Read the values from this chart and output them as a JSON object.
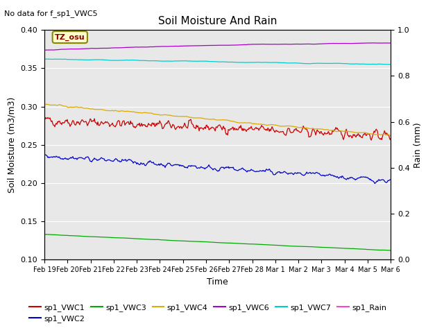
{
  "title": "Soil Moisture And Rain",
  "top_left_text": "No data for f_sp1_VWC5",
  "annotation_text": "TZ_osu",
  "xlabel": "Time",
  "ylabel_left": "Soil Moisture (m3/m3)",
  "ylabel_right": "Rain (mm)",
  "ylim_left": [
    0.1,
    0.4
  ],
  "ylim_right": [
    0.0,
    1.0
  ],
  "background_color": "#e8e8e8",
  "fig_background": "#ffffff",
  "series": {
    "sp1_VWC1": {
      "color": "#cc0000",
      "label": "sp1_VWC1"
    },
    "sp1_VWC2": {
      "color": "#0000cc",
      "label": "sp1_VWC2"
    },
    "sp1_VWC3": {
      "color": "#00aa00",
      "label": "sp1_VWC3"
    },
    "sp1_VWC4": {
      "color": "#ddaa00",
      "label": "sp1_VWC4"
    },
    "sp1_VWC6": {
      "color": "#aa00cc",
      "label": "sp1_VWC6"
    },
    "sp1_VWC7": {
      "color": "#00cccc",
      "label": "sp1_VWC7"
    },
    "sp1_Rain": {
      "color": "#ff44cc",
      "label": "sp1_Rain"
    }
  },
  "tick_labels": [
    "Feb 19",
    "Feb 20",
    "Feb 21",
    "Feb 22",
    "Feb 23",
    "Feb 24",
    "Feb 25",
    "Feb 26",
    "Feb 27",
    "Feb 28",
    "Mar 1",
    "Mar 2",
    "Mar 3",
    "Mar 4",
    "Mar 5",
    "Mar 6"
  ],
  "yticks_left": [
    0.1,
    0.15,
    0.2,
    0.25,
    0.3,
    0.35,
    0.4
  ],
  "yticks_right": [
    0.0,
    0.2,
    0.4,
    0.6,
    0.8,
    1.0
  ]
}
